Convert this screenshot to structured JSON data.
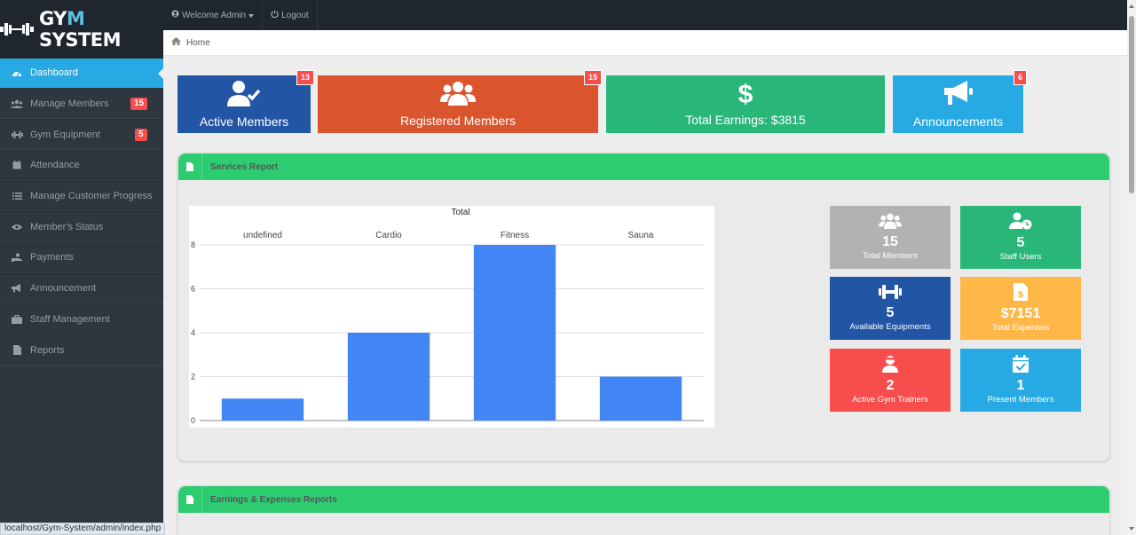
{
  "app": {
    "logo_pre": "GY",
    "logo_y": "M",
    "logo_post": "SYSTEM"
  },
  "topbar": {
    "welcome": "Welcome Admin",
    "logout": "Logout"
  },
  "breadcrumb": {
    "home": "Home"
  },
  "sidebar": {
    "items": [
      {
        "label": "Dashboard"
      },
      {
        "label": "Manage Members",
        "badge": "15"
      },
      {
        "label": "Gym Equipment",
        "badge": "5"
      },
      {
        "label": "Attendance"
      },
      {
        "label": "Manage Customer Progress"
      },
      {
        "label": "Member's Status"
      },
      {
        "label": "Payments"
      },
      {
        "label": "Announcement"
      },
      {
        "label": "Staff Management"
      },
      {
        "label": "Reports"
      }
    ]
  },
  "quick": [
    {
      "label": "Active Members",
      "badge": "13",
      "color": "#2255a4"
    },
    {
      "label": "Registered Members",
      "badge": "15",
      "color": "#da542e"
    },
    {
      "label": "Total Earnings: $3815",
      "color": "#28b779"
    },
    {
      "label": "Announcements",
      "badge": "6",
      "color": "#27a9e3"
    }
  ],
  "services": {
    "title": "Services Report",
    "chart_data": {
      "type": "bar",
      "title": "Total",
      "categories": [
        "undefined",
        "Cardio",
        "Fitness",
        "Sauna"
      ],
      "values": [
        1,
        4,
        8,
        2
      ],
      "ylim": [
        0,
        8
      ],
      "yticks": [
        0,
        2,
        4,
        6,
        8
      ],
      "grid": true,
      "bar_color": "#4285f4"
    }
  },
  "mini": [
    {
      "num": "15",
      "label": "Total Members",
      "color": "#b2b2b2"
    },
    {
      "num": "5",
      "label": "Staff Users",
      "color": "#28b779"
    },
    {
      "num": "5",
      "label": "Available Equipments",
      "color": "#2255a4"
    },
    {
      "num": "$7151",
      "label": "Total Expenses",
      "color": "#ffb848"
    },
    {
      "num": "2",
      "label": "Active Gym Trainers",
      "color": "#f74d4d"
    },
    {
      "num": "1",
      "label": "Present Members",
      "color": "#27a9e3"
    }
  ],
  "earnings": {
    "title": "Earnings & Expenses Reports"
  },
  "statusbar": {
    "url": "localhost/Gym-System/admin/index.php"
  }
}
